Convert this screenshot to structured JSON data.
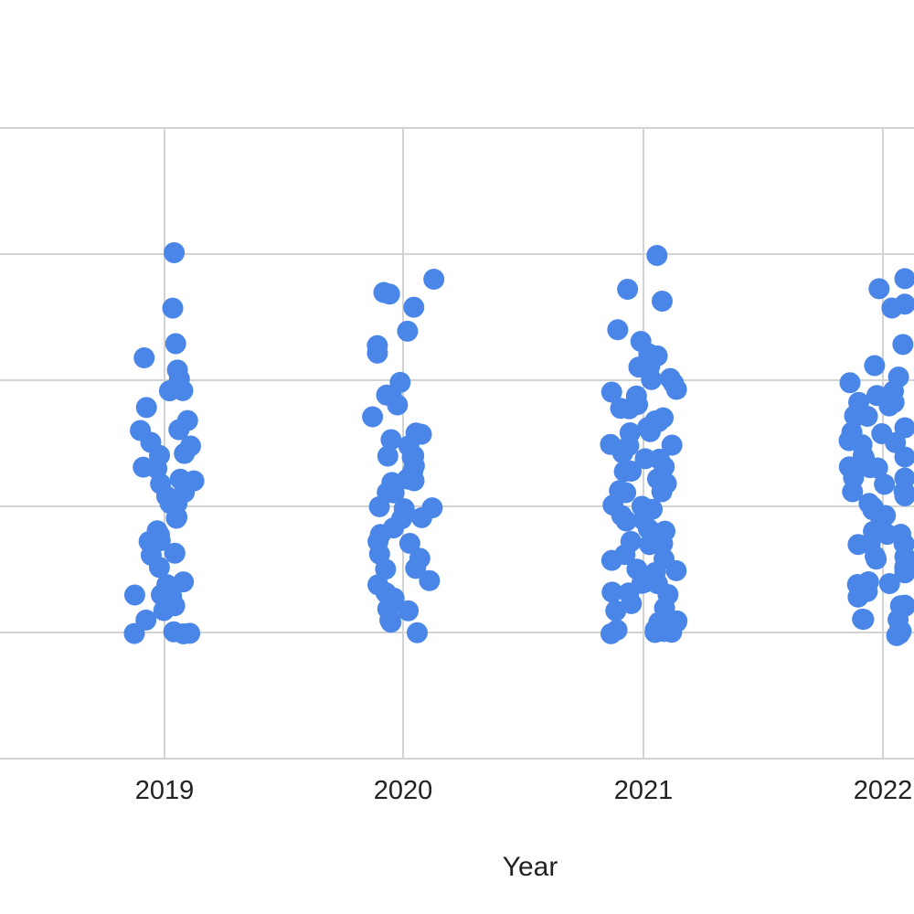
{
  "chart_data": {
    "type": "scatter",
    "title": "",
    "xlabel": "Year",
    "ylabel": "",
    "x_categories": [
      "2019",
      "2020",
      "2021",
      "2022"
    ],
    "grid": true,
    "y_range_normalized": [
      0,
      5
    ],
    "point_color": "#4a86e8",
    "series": [
      {
        "values": [
          {
            "year": "2019",
            "y": [
              4.0,
              3.6,
              3.3,
              3.2,
              3.1,
              3.0,
              2.9,
              2.9,
              2.8,
              2.7,
              2.6,
              2.6,
              2.5,
              2.5,
              2.4,
              2.4,
              2.3,
              2.3,
              2.2,
              2.2,
              2.2,
              2.1,
              2.1,
              2.0,
              2.0,
              1.9,
              1.9,
              1.8,
              1.8,
              1.7,
              1.7,
              1.6,
              1.6,
              1.5,
              1.4,
              1.4,
              1.3,
              1.3,
              1.3,
              1.2,
              1.2,
              1.1,
              1.0,
              1.0,
              1.0,
              1.0
            ]
          },
          {
            "year": "2020",
            "y": [
              3.7,
              3.8,
              3.7,
              3.6,
              3.4,
              3.3,
              3.2,
              3.0,
              2.9,
              2.9,
              2.8,
              2.7,
              2.6,
              2.6,
              2.5,
              2.5,
              2.4,
              2.4,
              2.4,
              2.3,
              2.3,
              2.2,
              2.2,
              2.2,
              2.1,
              2.1,
              2.0,
              2.0,
              2.0,
              1.9,
              1.9,
              1.8,
              1.8,
              1.7,
              1.7,
              1.6,
              1.6,
              1.5,
              1.5,
              1.4,
              1.4,
              1.3,
              1.3,
              1.2,
              1.2,
              1.1,
              1.1,
              1.0
            ]
          },
          {
            "year": "2021",
            "y": [
              4.0,
              3.7,
              3.6,
              3.4,
              3.3,
              3.2,
              3.2,
              3.1,
              3.1,
              3.0,
              3.0,
              3.0,
              2.9,
              2.9,
              2.9,
              2.8,
              2.8,
              2.8,
              2.7,
              2.7,
              2.7,
              2.6,
              2.6,
              2.6,
              2.5,
              2.5,
              2.5,
              2.4,
              2.4,
              2.4,
              2.3,
              2.3,
              2.3,
              2.2,
              2.2,
              2.2,
              2.1,
              2.1,
              2.1,
              2.0,
              2.0,
              2.0,
              1.9,
              1.9,
              1.9,
              1.8,
              1.8,
              1.8,
              1.7,
              1.7,
              1.7,
              1.6,
              1.6,
              1.6,
              1.5,
              1.5,
              1.5,
              1.4,
              1.4,
              1.4,
              1.3,
              1.3,
              1.3,
              1.2,
              1.2,
              1.2,
              1.1,
              1.1,
              1.1,
              1.0,
              1.0,
              1.0,
              1.0,
              1.0,
              1.0
            ]
          },
          {
            "year": "2022",
            "y": [
              3.8,
              3.7,
              3.6,
              3.6,
              3.3,
              3.1,
              3.0,
              3.0,
              2.9,
              2.9,
              2.8,
              2.8,
              2.8,
              2.7,
              2.7,
              2.7,
              2.6,
              2.6,
              2.6,
              2.5,
              2.5,
              2.5,
              2.4,
              2.4,
              2.4,
              2.3,
              2.3,
              2.3,
              2.2,
              2.2,
              2.2,
              2.1,
              2.1,
              2.1,
              2.0,
              2.0,
              2.0,
              1.9,
              1.9,
              1.9,
              1.8,
              1.8,
              1.8,
              1.7,
              1.7,
              1.7,
              1.6,
              1.6,
              1.6,
              1.5,
              1.5,
              1.5,
              1.4,
              1.4,
              1.4,
              1.3,
              1.3,
              1.3,
              1.2,
              1.2,
              1.2,
              1.1,
              1.1,
              1.1,
              1.0,
              1.0,
              1.0,
              1.0
            ]
          }
        ]
      }
    ]
  }
}
